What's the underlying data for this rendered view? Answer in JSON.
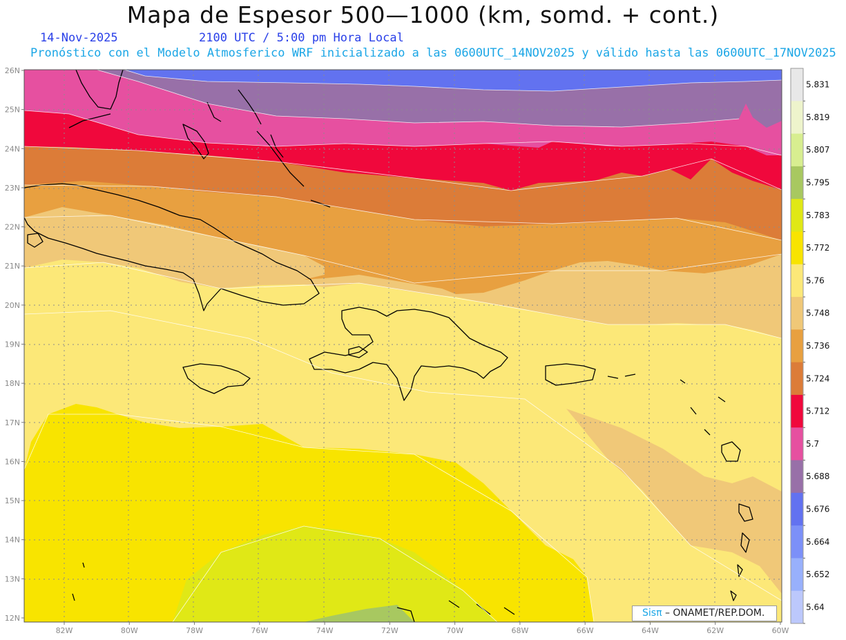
{
  "header": {
    "title": "Mapa de Espesor 500—1000 (km, somd. + cont.)",
    "date": "14-Nov-2025",
    "time": "2100 UTC / 5:00 pm Hora Local",
    "description": "Pronóstico con el Modelo Atmosferico WRF inicializado a las 0600UTC_14NOV2025 y válido hasta las  0600UTC_17NOV2025"
  },
  "credit": {
    "brand": "Sisπ",
    "text": "– ONAMET/REP.DOM."
  },
  "axes": {
    "lat_labels": [
      "26N",
      "25N",
      "24N",
      "23N",
      "22N",
      "21N",
      "20N",
      "19N",
      "18N",
      "17N",
      "16N",
      "15N",
      "14N",
      "13N",
      "12N"
    ],
    "lon_labels": [
      "82W",
      "80W",
      "78W",
      "76W",
      "74W",
      "72W",
      "70W",
      "68W",
      "66W",
      "64W",
      "62W",
      "60W"
    ]
  },
  "colorbar": {
    "labels": [
      "5.831",
      "5.819",
      "5.807",
      "5.795",
      "5.783",
      "5.772",
      "5.76",
      "5.748",
      "5.736",
      "5.724",
      "5.712",
      "5.7",
      "5.688",
      "5.676",
      "5.664",
      "5.652",
      "5.64"
    ],
    "colors": [
      "#e8e8e8",
      "#eef4cc",
      "#d8ee90",
      "#a8c860",
      "#e0e816",
      "#f8e400",
      "#fce878",
      "#f0c878",
      "#e8a040",
      "#dc7c38",
      "#f0083c",
      "#e650a0",
      "#9870a8",
      "#6272f0",
      "#7c90f8",
      "#98b0fc",
      "#bcc8fc"
    ]
  },
  "palette": {
    "blue": "#6272f0",
    "purple": "#9870a8",
    "pink": "#e650a0",
    "red": "#f0083c",
    "dark_orange": "#dc7c38",
    "orange": "#e8a040",
    "tan": "#f0c878",
    "light_yellow": "#fce878",
    "yellow": "#f8e400",
    "yellow_green": "#e0e816",
    "olive": "#a8c860"
  }
}
